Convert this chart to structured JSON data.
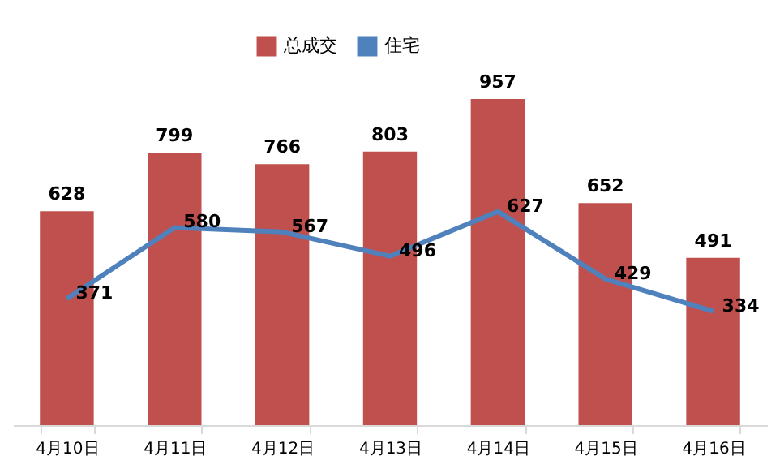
{
  "chart_data": {
    "type": "bar",
    "categories": [
      "4月10日",
      "4月11日",
      "4月12日",
      "4月13日",
      "4月14日",
      "4月15日",
      "4月16日"
    ],
    "series": [
      {
        "name": "总成交",
        "color": "#c0504d",
        "values": [
          628,
          799,
          766,
          803,
          957,
          652,
          491
        ]
      },
      {
        "name": "住宅",
        "type": "line",
        "color": "#4f81bd",
        "values": [
          371,
          580,
          567,
          496,
          627,
          429,
          334
        ]
      }
    ],
    "tick_labels": "x",
    "data_labels": true,
    "grid": false,
    "legend": "top",
    "marker": "none",
    "line_style": "solid"
  }
}
